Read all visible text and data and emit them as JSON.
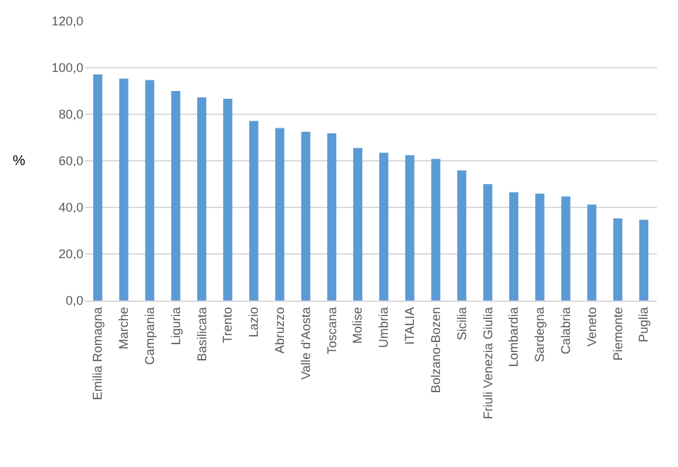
{
  "chart_data": {
    "type": "bar",
    "ylabel": "%",
    "categories": [
      "Emilia Romagna",
      "Marche",
      "Campania",
      "Liguria",
      "Basilicata",
      "Trento",
      "Lazio",
      "Abruzzo",
      "Valle d'Aosta",
      "Toscana",
      "Molise",
      "Umbria",
      "ITALIA",
      "Bolzano-Bozen",
      "Sicilia",
      "Friuli Venezia Giulia",
      "Lombardia",
      "Sardegna",
      "Calabria",
      "Veneto",
      "Piemonte",
      "Puglia"
    ],
    "values": [
      97.1,
      95.3,
      94.7,
      90.0,
      87.3,
      86.7,
      77.1,
      74.1,
      72.5,
      71.8,
      65.5,
      63.5,
      62.4,
      60.8,
      55.9,
      50.0,
      46.5,
      45.9,
      44.7,
      41.2,
      35.3,
      34.7
    ],
    "color": "#5b9bd5",
    "ylim": [
      0,
      120
    ],
    "yticks": [
      {
        "value": 0,
        "label": "0,0"
      },
      {
        "value": 20,
        "label": "20,0"
      },
      {
        "value": 40,
        "label": "40,0"
      },
      {
        "value": 60,
        "label": "60,0"
      },
      {
        "value": 80,
        "label": "80,0"
      },
      {
        "value": 100,
        "label": "100,0"
      },
      {
        "value": 120,
        "label": "120,0"
      }
    ],
    "grid": "y"
  }
}
